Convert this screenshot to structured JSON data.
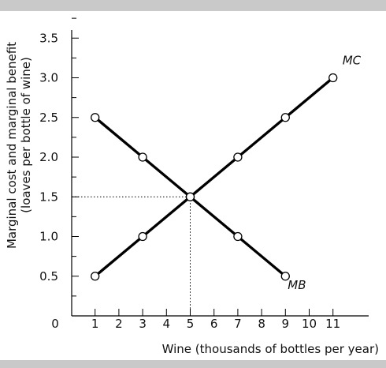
{
  "chart_data": {
    "type": "line",
    "xlabel": "Wine (thousands of bottles per year)",
    "ylabel_line1": "Marginal cost and marginal benefit",
    "ylabel_line2": "(loaves per bottle of wine)",
    "xlim": [
      0,
      12
    ],
    "ylim": [
      0,
      3.75
    ],
    "x_ticks": [
      1,
      2,
      3,
      4,
      5,
      6,
      7,
      8,
      9,
      10,
      11
    ],
    "y_ticks": [
      0.5,
      1.0,
      1.5,
      2.0,
      2.5,
      3.0,
      3.5
    ],
    "y_tick_labels": [
      "0.5",
      "1.0",
      "1.5",
      "2.0",
      "2.5",
      "3.0",
      "3.5"
    ],
    "origin_label": "0",
    "series": [
      {
        "name": "MC",
        "x": [
          1,
          3,
          5,
          7,
          9,
          11
        ],
        "y": [
          0.5,
          1.0,
          1.5,
          2.0,
          2.5,
          3.0
        ]
      },
      {
        "name": "MB",
        "x": [
          1,
          3,
          5,
          7,
          9
        ],
        "y": [
          2.5,
          2.0,
          1.5,
          1.0,
          0.5
        ]
      }
    ],
    "equilibrium": {
      "x": 5,
      "y": 1.5
    },
    "grid": false,
    "colors": {
      "line": "#000000",
      "marker_fill": "#ffffff",
      "panel": "#ffffff",
      "frame": "#c9c9c9"
    }
  }
}
